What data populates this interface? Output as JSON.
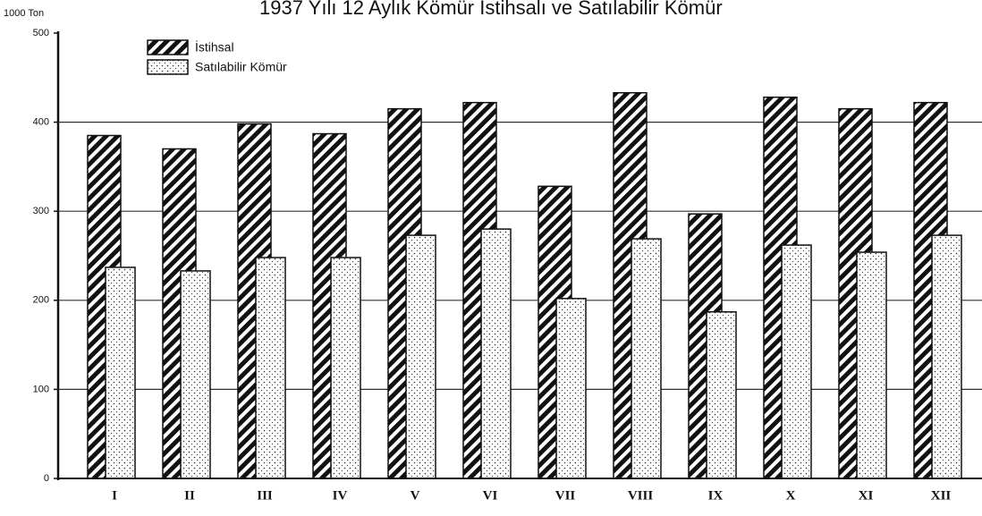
{
  "chart_data": {
    "type": "bar",
    "title": "1937 Yılı 12 Aylık Kömür İstihsalı ve Satılabilir Kömür",
    "y_label": "1000 Ton",
    "categories": [
      "I",
      "II",
      "III",
      "IV",
      "V",
      "VI",
      "VII",
      "VIII",
      "IX",
      "X",
      "XI",
      "XII"
    ],
    "series": [
      {
        "name": "İstihsal",
        "color": "#111111",
        "values": [
          385,
          370,
          398,
          387,
          415,
          422,
          328,
          433,
          297,
          428,
          415,
          422
        ]
      },
      {
        "name": "Satılabilir Kömür",
        "color": "#333333",
        "values": [
          237,
          233,
          248,
          248,
          273,
          280,
          202,
          269,
          187,
          262,
          254,
          273
        ]
      }
    ],
    "ylim": [
      0,
      500
    ],
    "yticks": [
      0,
      100,
      200,
      300,
      400,
      500
    ],
    "grid": true,
    "legend": "top-left"
  }
}
